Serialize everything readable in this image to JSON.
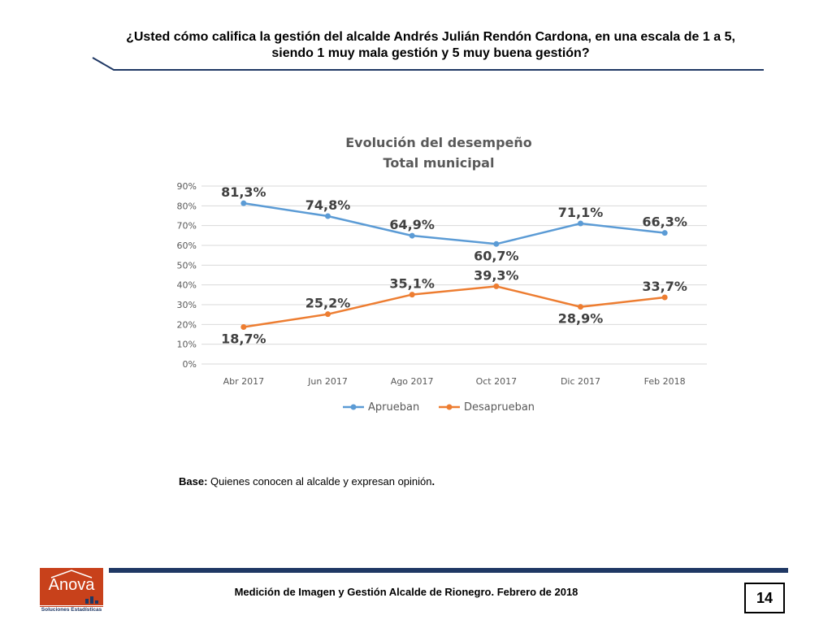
{
  "header": {
    "question": "¿Usted cómo califica la gestión del alcalde Andrés Julián Rendón Cardona, en una escala de 1 a 5, siendo 1 muy mala gestión y 5 muy buena gestión?"
  },
  "colors": {
    "series_approve": "#5B9BD5",
    "series_disapprove": "#ED7D31",
    "header_rule": "#1F3864",
    "logo": "#C8411B"
  },
  "chart_data": {
    "type": "line",
    "title": "Evolución del desempeño",
    "subtitle": "Total municipal",
    "categories": [
      "Abr 2017",
      "Jun 2017",
      "Ago 2017",
      "Oct 2017",
      "Dic 2017",
      "Feb 2018"
    ],
    "series": [
      {
        "name": "Aprueban",
        "values": [
          81.3,
          74.8,
          64.9,
          60.7,
          71.1,
          66.3
        ],
        "labels": [
          "81,3%",
          "74,8%",
          "64,9%",
          "60,7%",
          "71,1%",
          "66,3%"
        ]
      },
      {
        "name": "Desaprueban",
        "values": [
          18.7,
          25.2,
          35.1,
          39.3,
          28.9,
          33.7
        ],
        "labels": [
          "18,7%",
          "25,2%",
          "35,1%",
          "39,3%",
          "28,9%",
          "33,7%"
        ]
      }
    ],
    "ylim": [
      0,
      90
    ],
    "yticks": [
      "0%",
      "10%",
      "20%",
      "30%",
      "40%",
      "50%",
      "60%",
      "70%",
      "80%",
      "90%"
    ],
    "grid": true,
    "legend": "bottom"
  },
  "note": {
    "label": "Base:",
    "text": " Quienes conocen al alcalde y expresan opinión",
    "end": "."
  },
  "footer": {
    "logo_name": "Anova",
    "logo_sub": "Soluciones Estadísticas",
    "title": "Medición de Imagen y Gestión Alcalde de Rionegro. Febrero de 2018",
    "page": "14"
  }
}
